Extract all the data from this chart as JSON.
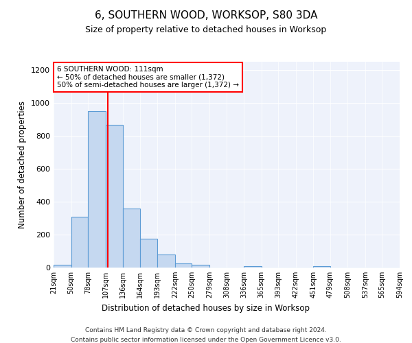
{
  "title": "6, SOUTHERN WOOD, WORKSOP, S80 3DA",
  "subtitle": "Size of property relative to detached houses in Worksop",
  "xlabel": "Distribution of detached houses by size in Worksop",
  "ylabel": "Number of detached properties",
  "footer_line1": "Contains HM Land Registry data © Crown copyright and database right 2024.",
  "footer_line2": "Contains public sector information licensed under the Open Government Licence v3.0.",
  "annotation_title": "6 SOUTHERN WOOD: 111sqm",
  "annotation_line2": "← 50% of detached houses are smaller (1,372)",
  "annotation_line3": "50% of semi-detached houses are larger (1,372) →",
  "bar_edges": [
    21,
    50,
    78,
    107,
    136,
    164,
    193,
    222,
    250,
    279,
    308,
    336,
    365,
    393,
    422,
    451,
    479,
    508,
    537,
    565,
    594
  ],
  "bar_heights": [
    15,
    310,
    950,
    865,
    360,
    175,
    80,
    27,
    15,
    0,
    0,
    10,
    0,
    0,
    0,
    10,
    0,
    0,
    0,
    0,
    0
  ],
  "bar_color": "#c5d8f0",
  "bar_edge_color": "#5b9bd5",
  "red_line_x": 111,
  "ylim": [
    0,
    1250
  ],
  "yticks": [
    0,
    200,
    400,
    600,
    800,
    1000,
    1200
  ],
  "background_color": "#eef2fb",
  "title_fontsize": 11,
  "subtitle_fontsize": 9
}
